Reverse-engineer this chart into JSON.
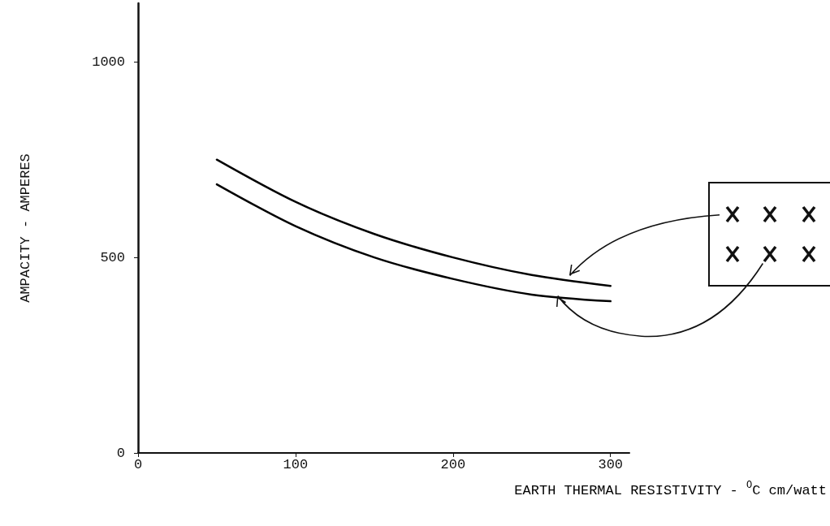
{
  "chart_data": {
    "type": "line",
    "xlabel": "EARTH THERMAL RESISTIVITY - $^{O}$C cm/watt",
    "ylabel": "AMPACITY - AMPERES",
    "x": [
      50,
      100,
      150,
      200,
      250,
      300
    ],
    "series": [
      {
        "color": "#000000",
        "values": [
          750,
          642,
          560,
          500,
          455,
          427
        ]
      },
      {
        "color": "#000000",
        "values": [
          687,
          580,
          500,
          445,
          405,
          388
        ]
      }
    ],
    "xlim": [
      0,
      312
    ],
    "xticks": [
      0,
      100,
      200,
      300
    ],
    "ylim": [
      0,
      1150
    ],
    "yticks": [
      0,
      500,
      1000
    ],
    "grid": false,
    "marker": "none",
    "line_style": "solid"
  }
}
